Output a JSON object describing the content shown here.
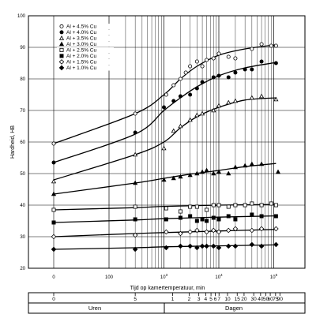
{
  "chart_data": {
    "type": "scatter",
    "title": "",
    "xlabel": "Tijd op kamertemperatuur, min",
    "ylabel": "Hardheid, HB",
    "x_scale": "log",
    "x_origin_label": "0",
    "x_ticks": [
      {
        "value": 100,
        "label": "100"
      },
      {
        "value": 1000,
        "label": "10",
        "sup": "3"
      },
      {
        "value": 10000,
        "label": "10",
        "sup": "4"
      },
      {
        "value": 100000,
        "label": "10",
        "sup": "5"
      }
    ],
    "y_ticks": [
      20,
      30,
      40,
      50,
      60,
      70,
      80,
      90,
      100
    ],
    "ylim": [
      20,
      100
    ],
    "grid": true,
    "legend_position": "top-left",
    "series": [
      {
        "name": "Al + 4.5% Cu",
        "marker": "open-circle",
        "points": [
          [
            0,
            59.5
          ],
          [
            300,
            69
          ],
          [
            1100,
            75
          ],
          [
            1500,
            78
          ],
          [
            2000,
            80
          ],
          [
            2500,
            82
          ],
          [
            3000,
            84
          ],
          [
            4000,
            85.5
          ],
          [
            5000,
            84
          ],
          [
            6000,
            86
          ],
          [
            8000,
            86.5
          ],
          [
            10000,
            88
          ],
          [
            15000,
            87
          ],
          [
            20000,
            86.5
          ],
          [
            40000,
            89.5
          ],
          [
            60000,
            91
          ],
          [
            90000,
            90.5
          ],
          [
            110000,
            90.5
          ]
        ],
        "curve": [
          [
            0,
            59.5
          ],
          [
            300,
            69
          ],
          [
            1000,
            75
          ],
          [
            2000,
            80
          ],
          [
            4000,
            84
          ],
          [
            10000,
            87.5
          ],
          [
            30000,
            89.5
          ],
          [
            110000,
            90.8
          ]
        ]
      },
      {
        "name": "Al + 4.0% Cu",
        "marker": "filled-circle",
        "points": [
          [
            0,
            53.5
          ],
          [
            300,
            63
          ],
          [
            1000,
            71
          ],
          [
            1500,
            73
          ],
          [
            2000,
            74.5
          ],
          [
            3000,
            75
          ],
          [
            4000,
            77
          ],
          [
            5000,
            79
          ],
          [
            8000,
            80.5
          ],
          [
            10000,
            81
          ],
          [
            15000,
            80.5
          ],
          [
            20000,
            82
          ],
          [
            30000,
            83
          ],
          [
            40000,
            83
          ],
          [
            60000,
            85.5
          ],
          [
            110000,
            85
          ]
        ],
        "curve": [
          [
            0,
            53.5
          ],
          [
            300,
            62.5
          ],
          [
            1000,
            70
          ],
          [
            2000,
            74
          ],
          [
            4000,
            77.5
          ],
          [
            10000,
            81
          ],
          [
            30000,
            83.5
          ],
          [
            110000,
            85.2
          ]
        ]
      },
      {
        "name": "Al + 3.5% Cu",
        "marker": "open-triangle",
        "points": [
          [
            0,
            47.5
          ],
          [
            300,
            56
          ],
          [
            1000,
            58
          ],
          [
            1500,
            63.5
          ],
          [
            2000,
            65
          ],
          [
            3000,
            67
          ],
          [
            4000,
            68.5
          ],
          [
            5000,
            69
          ],
          [
            8000,
            70
          ],
          [
            10000,
            71.5
          ],
          [
            15000,
            72.5
          ],
          [
            20000,
            73
          ],
          [
            40000,
            74
          ],
          [
            60000,
            74.5
          ],
          [
            110000,
            73.5
          ]
        ],
        "curve": [
          [
            0,
            48
          ],
          [
            300,
            56
          ],
          [
            1000,
            60
          ],
          [
            2000,
            64.5
          ],
          [
            4000,
            68
          ],
          [
            10000,
            71
          ],
          [
            30000,
            73.3
          ],
          [
            110000,
            74
          ]
        ]
      },
      {
        "name": "Al + 3.0% Cu",
        "marker": "filled-triangle",
        "points": [
          [
            0,
            43.5
          ],
          [
            300,
            47
          ],
          [
            1000,
            48
          ],
          [
            1500,
            48.5
          ],
          [
            2000,
            49
          ],
          [
            3000,
            49.5
          ],
          [
            4000,
            50
          ],
          [
            5000,
            50.5
          ],
          [
            6000,
            51
          ],
          [
            8000,
            50
          ],
          [
            10000,
            50.5
          ],
          [
            15000,
            50
          ],
          [
            20000,
            52
          ],
          [
            30000,
            52.5
          ],
          [
            40000,
            53
          ],
          [
            60000,
            53
          ],
          [
            120000,
            50.5
          ]
        ],
        "curve": [
          [
            0,
            43.5
          ],
          [
            300,
            47
          ],
          [
            1000,
            48.5
          ],
          [
            3000,
            49.8
          ],
          [
            10000,
            51
          ],
          [
            30000,
            52.2
          ],
          [
            110000,
            53.2
          ]
        ]
      },
      {
        "name": "Al + 2.5% Cu",
        "marker": "open-square",
        "points": [
          [
            0,
            38.5
          ],
          [
            300,
            39.5
          ],
          [
            1100,
            39
          ],
          [
            2000,
            38
          ],
          [
            3000,
            39.5
          ],
          [
            4000,
            39.5
          ],
          [
            6000,
            38.5
          ],
          [
            8000,
            40
          ],
          [
            10000,
            40
          ],
          [
            15000,
            39.5
          ],
          [
            20000,
            40
          ],
          [
            30000,
            40
          ],
          [
            40000,
            40.5
          ],
          [
            60000,
            40
          ],
          [
            90000,
            40.5
          ],
          [
            110000,
            40
          ]
        ],
        "curve": [
          [
            0,
            38.5
          ],
          [
            300,
            39.2
          ],
          [
            1000,
            39.6
          ],
          [
            10000,
            40
          ],
          [
            110000,
            40.2
          ]
        ]
      },
      {
        "name": "Al + 2.0% Cu",
        "marker": "filled-square",
        "points": [
          [
            0,
            34.5
          ],
          [
            300,
            35.5
          ],
          [
            1100,
            35.5
          ],
          [
            2000,
            36
          ],
          [
            3000,
            36.5
          ],
          [
            4000,
            35
          ],
          [
            5000,
            35.5
          ],
          [
            6000,
            35
          ],
          [
            8000,
            36
          ],
          [
            10000,
            35.5
          ],
          [
            15000,
            36.5
          ],
          [
            20000,
            35.5
          ],
          [
            40000,
            37
          ],
          [
            60000,
            36.5
          ],
          [
            110000,
            36.5
          ]
        ],
        "curve": [
          [
            0,
            34.5
          ],
          [
            300,
            35.3
          ],
          [
            1000,
            35.7
          ],
          [
            10000,
            36.2
          ],
          [
            110000,
            36.6
          ]
        ]
      },
      {
        "name": "Al + 1.5% Cu",
        "marker": "open-diamond",
        "points": [
          [
            0,
            30
          ],
          [
            300,
            30.5
          ],
          [
            1100,
            31.5
          ],
          [
            2000,
            31
          ],
          [
            3000,
            31.5
          ],
          [
            4000,
            32
          ],
          [
            6000,
            31.5
          ],
          [
            8000,
            32
          ],
          [
            10000,
            31.5
          ],
          [
            15000,
            32
          ],
          [
            20000,
            32.5
          ],
          [
            40000,
            32
          ],
          [
            60000,
            32.5
          ],
          [
            110000,
            32.5
          ]
        ],
        "curve": [
          [
            0,
            30
          ],
          [
            300,
            31
          ],
          [
            1000,
            31.3
          ],
          [
            10000,
            31.8
          ],
          [
            110000,
            32.3
          ]
        ]
      },
      {
        "name": "Al + 1.0% Cu",
        "marker": "filled-diamond",
        "points": [
          [
            0,
            26
          ],
          [
            300,
            26
          ],
          [
            1100,
            26.5
          ],
          [
            2000,
            27
          ],
          [
            3000,
            27
          ],
          [
            4000,
            26.5
          ],
          [
            5000,
            27
          ],
          [
            6000,
            27
          ],
          [
            8000,
            27
          ],
          [
            10000,
            26.5
          ],
          [
            15000,
            27
          ],
          [
            20000,
            27
          ],
          [
            40000,
            27.5
          ],
          [
            60000,
            27
          ],
          [
            110000,
            27.5
          ]
        ],
        "curve": [
          [
            0,
            26
          ],
          [
            300,
            26.5
          ],
          [
            1000,
            26.8
          ],
          [
            10000,
            27.1
          ],
          [
            110000,
            27.4
          ]
        ]
      }
    ]
  },
  "time_scale": {
    "hours_title": "Uren",
    "days_title": "Dagen",
    "hour_ticks": [
      {
        "minutes": 0,
        "label": "0"
      },
      {
        "minutes": 300,
        "label": "5"
      }
    ],
    "day_ticks": [
      {
        "minutes": 1440,
        "label": "1"
      },
      {
        "minutes": 2880,
        "label": "2"
      },
      {
        "minutes": 4320,
        "label": "3"
      },
      {
        "minutes": 5760,
        "label": "4"
      },
      {
        "minutes": 7200,
        "label": "5"
      },
      {
        "minutes": 8640,
        "label": "6"
      },
      {
        "minutes": 10080,
        "label": "7"
      },
      {
        "minutes": 14400,
        "label": "10"
      },
      {
        "minutes": 21600,
        "label": "15"
      },
      {
        "minutes": 28800,
        "label": "20"
      },
      {
        "minutes": 43200,
        "label": "30"
      },
      {
        "minutes": 57600,
        "label": "40"
      },
      {
        "minutes": 72000,
        "label": "50"
      },
      {
        "minutes": 86400,
        "label": "60"
      },
      {
        "minutes": 108000,
        "label": "75"
      },
      {
        "minutes": 129600,
        "label": "90"
      }
    ]
  }
}
